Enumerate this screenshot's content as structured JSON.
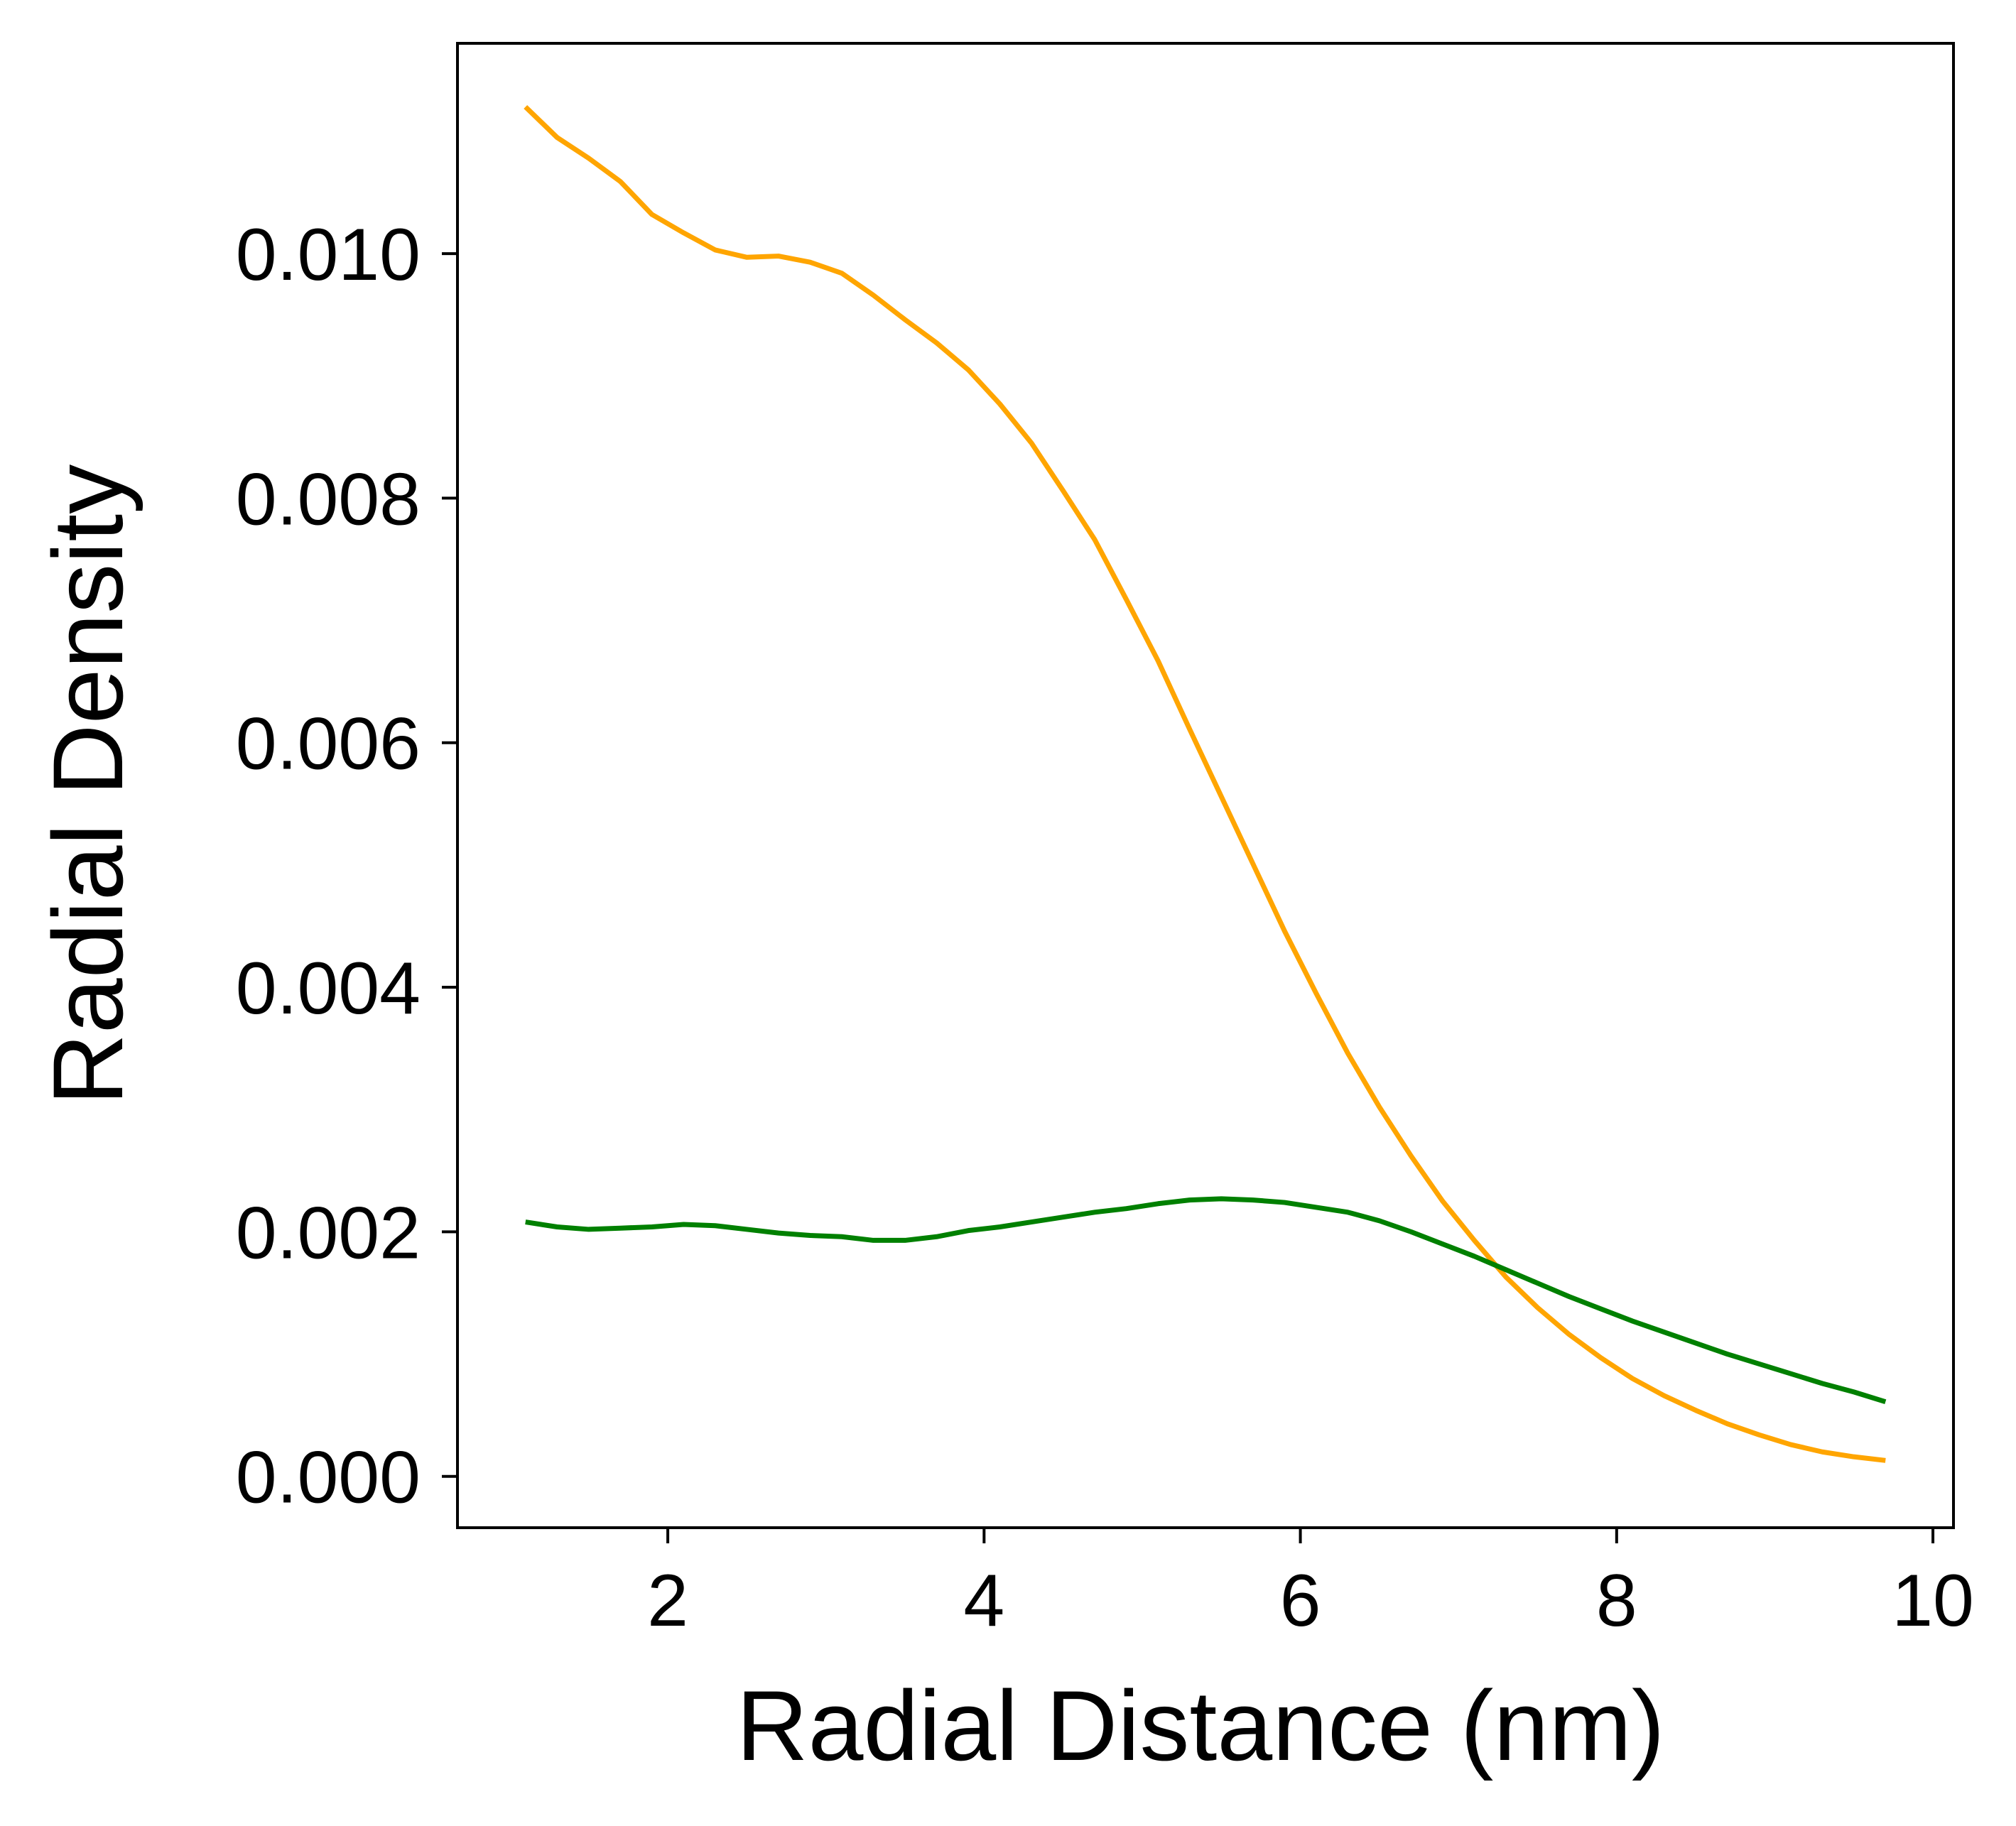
{
  "chart_data": {
    "type": "line",
    "title": "",
    "xlabel": "Radial Distance (nm)",
    "ylabel": "Radial Density",
    "xlim": [
      0.67,
      10.13
    ],
    "ylim": [
      -0.00042,
      0.01172
    ],
    "x_ticks": [
      2,
      4,
      6,
      8,
      10
    ],
    "x_tick_labels": [
      "2",
      "4",
      "6",
      "8",
      "10"
    ],
    "y_ticks": [
      0.0,
      0.002,
      0.004,
      0.006,
      0.008,
      0.01
    ],
    "y_tick_labels": [
      "0.000",
      "0.002",
      "0.004",
      "0.006",
      "0.008",
      "0.010"
    ],
    "grid": false,
    "legend": "none",
    "series": [
      {
        "color": "#FFA500",
        "x": [
          1.1,
          1.3,
          1.5,
          1.7,
          1.9,
          2.1,
          2.3,
          2.5,
          2.7,
          2.9,
          3.1,
          3.3,
          3.5,
          3.7,
          3.9,
          4.1,
          4.3,
          4.5,
          4.7,
          4.9,
          5.1,
          5.3,
          5.5,
          5.7,
          5.9,
          6.1,
          6.3,
          6.5,
          6.7,
          6.9,
          7.1,
          7.3,
          7.5,
          7.7,
          7.9,
          8.1,
          8.3,
          8.5,
          8.7,
          8.9,
          9.1,
          9.3,
          9.5,
          9.7
        ],
        "y": [
          0.0112,
          0.01095,
          0.01078,
          0.01059,
          0.01032,
          0.01017,
          0.01003,
          0.00997,
          0.00998,
          0.00993,
          0.00984,
          0.00966,
          0.00946,
          0.00927,
          0.00905,
          0.00877,
          0.00845,
          0.00806,
          0.00766,
          0.00717,
          0.00667,
          0.00611,
          0.00556,
          0.00501,
          0.00446,
          0.00395,
          0.00346,
          0.00302,
          0.00262,
          0.00225,
          0.00193,
          0.00163,
          0.00138,
          0.00116,
          0.00097,
          0.0008,
          0.00066,
          0.00054,
          0.00043,
          0.00034,
          0.00026,
          0.0002,
          0.00016,
          0.00013
        ]
      },
      {
        "color": "#008000",
        "x": [
          1.1,
          1.3,
          1.5,
          1.7,
          1.9,
          2.1,
          2.3,
          2.5,
          2.7,
          2.9,
          3.1,
          3.3,
          3.5,
          3.7,
          3.9,
          4.1,
          4.3,
          4.5,
          4.7,
          4.9,
          5.1,
          5.3,
          5.5,
          5.7,
          5.9,
          6.1,
          6.3,
          6.5,
          6.7,
          6.9,
          7.1,
          7.3,
          7.5,
          7.7,
          7.9,
          8.1,
          8.3,
          8.5,
          8.7,
          8.9,
          9.1,
          9.3,
          9.5,
          9.7
        ],
        "y": [
          0.00208,
          0.00204,
          0.00202,
          0.00203,
          0.00204,
          0.00206,
          0.00205,
          0.00202,
          0.00199,
          0.00197,
          0.00196,
          0.00193,
          0.00193,
          0.00196,
          0.00201,
          0.00204,
          0.00208,
          0.00212,
          0.00216,
          0.00219,
          0.00223,
          0.00226,
          0.00227,
          0.00226,
          0.00224,
          0.0022,
          0.00216,
          0.00209,
          0.002,
          0.0019,
          0.0018,
          0.00169,
          0.00158,
          0.00147,
          0.00137,
          0.00127,
          0.00118,
          0.00109,
          0.001,
          0.00092,
          0.00084,
          0.00076,
          0.00069,
          0.00061
        ]
      }
    ]
  }
}
